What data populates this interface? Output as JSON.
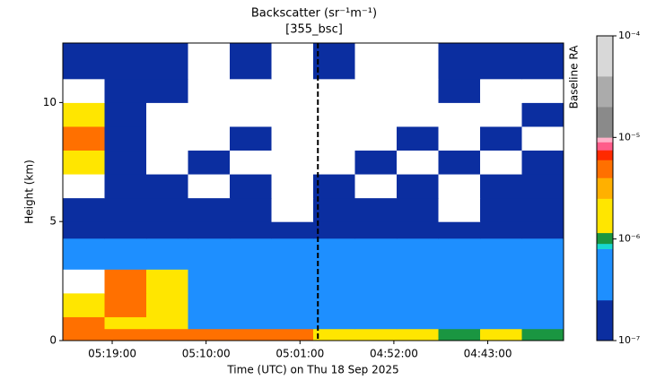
{
  "chart_data": {
    "type": "heatmap",
    "title": "Backscatter (sr⁻¹m⁻¹)",
    "subtitle": "[355_bsc]",
    "x_label": "Time (UTC) on Thu 18 Sep 2025",
    "y_label": "Height (km)",
    "side_label": "Baseline RA",
    "xlim": [
      "05:23:44",
      "04:35:44"
    ],
    "xticks": [
      "05:19:00",
      "05:10:00",
      "05:01:00",
      "04:52:00",
      "04:43:00"
    ],
    "ylim": [
      0,
      12.5
    ],
    "yticks": [
      0,
      5,
      10
    ],
    "marker_time": "04:59:17",
    "x_edges": [
      "05:23:44",
      "05:19:44",
      "05:15:44",
      "05:11:44",
      "05:07:44",
      "05:03:44",
      "04:59:44",
      "04:55:44",
      "04:51:44",
      "04:47:44",
      "04:43:44",
      "04:39:44",
      "04:35:44"
    ],
    "y_edges": [
      0,
      0.5,
      1,
      2,
      3,
      4.3,
      5,
      6,
      7,
      8,
      9,
      10,
      11,
      12.5
    ],
    "values": [
      [
        4e-06,
        4e-06,
        4e-06,
        4e-06,
        4e-06,
        4e-06,
        2e-06,
        2e-06,
        2e-06,
        1e-06,
        2e-06,
        1e-06
      ],
      [
        4e-06,
        2e-06,
        2e-06,
        5e-07,
        5e-07,
        5e-07,
        5e-07,
        5e-07,
        5e-07,
        5e-07,
        5e-07,
        5e-07
      ],
      [
        2e-06,
        4e-06,
        2e-06,
        5e-07,
        5e-07,
        5e-07,
        5e-07,
        5e-07,
        5e-07,
        5e-07,
        5e-07,
        5e-07
      ],
      [
        0.0002,
        4e-06,
        2e-06,
        5e-07,
        5e-07,
        5e-07,
        5e-07,
        5e-07,
        5e-07,
        5e-07,
        5e-07,
        5e-07
      ],
      [
        5e-07,
        5e-07,
        5e-07,
        5e-07,
        5e-07,
        5e-07,
        5e-07,
        5e-07,
        5e-07,
        5e-07,
        5e-07,
        5e-07
      ],
      [
        1.5e-07,
        1.5e-07,
        1.5e-07,
        1.5e-07,
        1.5e-07,
        1.5e-07,
        1.5e-07,
        1.5e-07,
        1.5e-07,
        1.5e-07,
        1.5e-07,
        1.5e-07
      ],
      [
        1.5e-07,
        1.5e-07,
        1.5e-07,
        1.5e-07,
        1.5e-07,
        0.0002,
        1.5e-07,
        1.5e-07,
        1.5e-07,
        0.0002,
        1.5e-07,
        1.5e-07
      ],
      [
        0.0002,
        1.5e-07,
        1.5e-07,
        0.0002,
        1.5e-07,
        0.0002,
        1.5e-07,
        0.0002,
        1.5e-07,
        0.0002,
        1.5e-07,
        1.5e-07
      ],
      [
        2e-06,
        1.5e-07,
        0.0002,
        1.5e-07,
        0.0002,
        0.0002,
        0.0002,
        1.5e-07,
        0.0002,
        1.5e-07,
        0.0002,
        1.5e-07
      ],
      [
        4e-06,
        1.5e-07,
        0.0002,
        0.0002,
        1.5e-07,
        0.0002,
        0.0002,
        0.0002,
        1.5e-07,
        0.0002,
        1.5e-07,
        0.0002
      ],
      [
        2e-06,
        1.5e-07,
        0.0002,
        0.0002,
        0.0002,
        0.0002,
        0.0002,
        0.0002,
        0.0002,
        0.0002,
        0.0002,
        1.5e-07
      ],
      [
        0.0002,
        1.5e-07,
        1.5e-07,
        0.0002,
        0.0002,
        0.0002,
        0.0002,
        0.0002,
        0.0002,
        1.5e-07,
        0.0002,
        0.0002
      ],
      [
        1.5e-07,
        1.5e-07,
        1.5e-07,
        0.0002,
        1.5e-07,
        0.0002,
        1.5e-07,
        0.0002,
        0.0002,
        1.5e-07,
        1.5e-07,
        1.5e-07
      ]
    ],
    "color_scale": "log",
    "clim": [
      1e-07,
      0.0001
    ],
    "cticks": [
      {
        "value": 1e-07,
        "label": "10⁻⁷"
      },
      {
        "value": 1e-06,
        "label": "10⁻⁶"
      },
      {
        "value": 1e-05,
        "label": "10⁻⁵"
      },
      {
        "value": 0.0001,
        "label": "10⁻⁴"
      }
    ],
    "color_bounds": [
      1e-07,
      2.5e-07,
      8e-07,
      9e-07,
      1.15e-06,
      2.5e-06,
      4e-06,
      6e-06,
      7.5e-06,
      9e-06,
      1e-05,
      2e-05,
      4e-05,
      0.0001
    ],
    "colors": [
      "#0b2ea0",
      "#1e8fff",
      "#18d8d0",
      "#1a9641",
      "#ffe600",
      "#ffb000",
      "#ff7000",
      "#ff2a00",
      "#ff5c8a",
      "#ffb0c8",
      "#8a8a8a",
      "#ababab",
      "#d8d8d8"
    ],
    "over_color": "#ffffff"
  }
}
